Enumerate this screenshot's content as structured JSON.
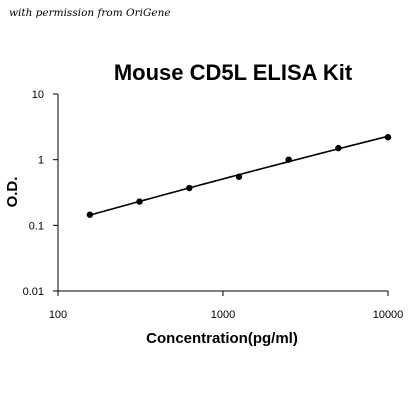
{
  "watermark": "with permission from OriGene",
  "chart_data": {
    "type": "scatter",
    "title": "Mouse CD5L ELISA Kit",
    "xlabel": "Concentration(pg/ml)",
    "ylabel": "O.D.",
    "xscale": "log",
    "yscale": "log",
    "xlim": [
      100,
      10000
    ],
    "ylim": [
      0.01,
      10
    ],
    "xticks": [
      "100",
      "1000",
      "10000"
    ],
    "yticks": [
      "10",
      "1",
      "0.1",
      "0.01"
    ],
    "grid": false,
    "series": [
      {
        "points": [
          {
            "x": 156,
            "y": 0.145
          },
          {
            "x": 312,
            "y": 0.23
          },
          {
            "x": 625,
            "y": 0.37
          },
          {
            "x": 1250,
            "y": 0.55
          },
          {
            "x": 2500,
            "y": 1.0
          },
          {
            "x": 5000,
            "y": 1.5
          },
          {
            "x": 10000,
            "y": 2.2
          }
        ],
        "fit_curve": true
      }
    ],
    "colors": {
      "points": "#000000",
      "curve": "#000000",
      "axes": "#000000"
    }
  }
}
